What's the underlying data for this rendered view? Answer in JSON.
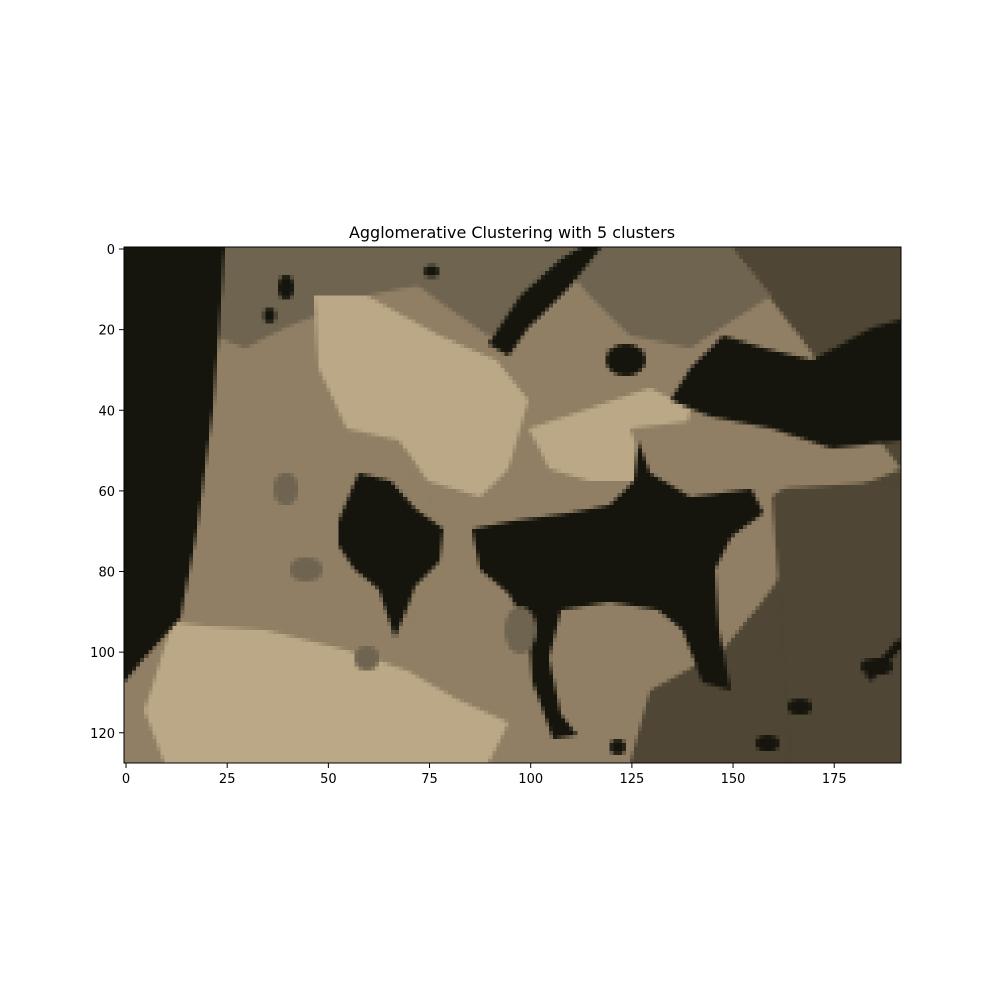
{
  "chart_data": {
    "type": "heatmap",
    "title": "Agglomerative Clustering with 5 clusters",
    "xlabel": "",
    "ylabel": "",
    "xlim": [
      -0.5,
      191.5
    ],
    "ylim": [
      127.5,
      -0.5
    ],
    "x_ticks": [
      0,
      25,
      50,
      75,
      100,
      125,
      150,
      175
    ],
    "y_ticks": [
      0,
      20,
      40,
      60,
      80,
      100,
      120
    ],
    "x_tick_labels": [
      "0",
      "25",
      "50",
      "75",
      "100",
      "125",
      "150",
      "175"
    ],
    "y_tick_labels": [
      "0",
      "20",
      "40",
      "60",
      "80",
      "100",
      "120"
    ],
    "image_size": {
      "width": 192,
      "height": 128
    },
    "clusters": [
      {
        "id": 0,
        "color": "#16150d"
      },
      {
        "id": 1,
        "color": "#4f4635"
      },
      {
        "id": 2,
        "color": "#6e6450"
      },
      {
        "id": 3,
        "color": "#907f64"
      },
      {
        "id": 4,
        "color": "#bba886"
      }
    ],
    "grid": false,
    "legend": "none"
  }
}
